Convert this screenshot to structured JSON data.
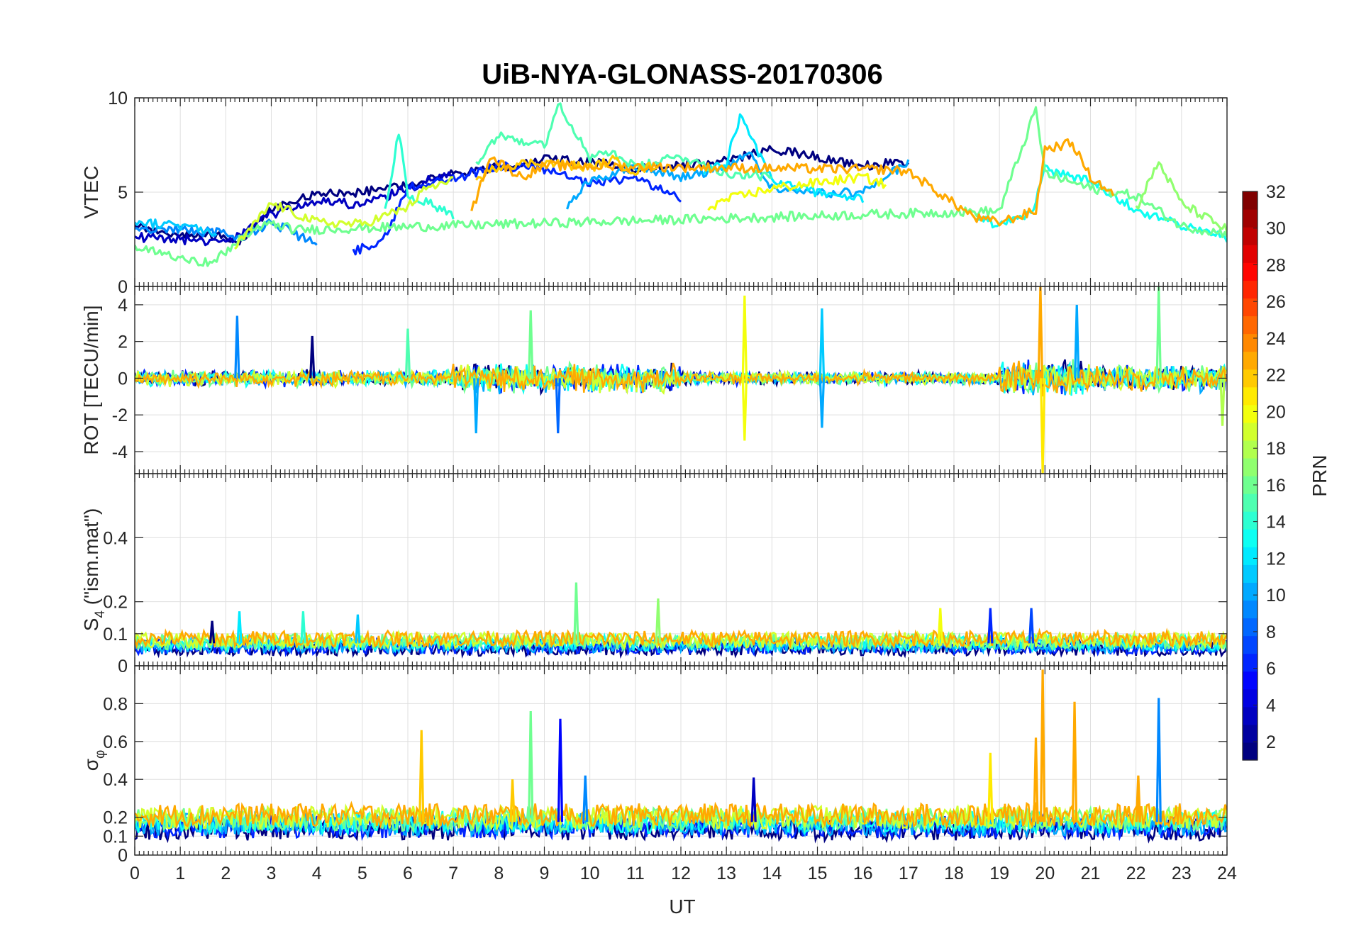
{
  "chart_data": {
    "type": "line",
    "title": "UiB-NYA-GLONASS-20170306",
    "xlabel": "UT",
    "xlim": [
      0,
      24
    ],
    "x_ticks": [
      "0",
      "1",
      "2",
      "3",
      "4",
      "5",
      "6",
      "7",
      "8",
      "9",
      "10",
      "11",
      "12",
      "13",
      "14",
      "15",
      "16",
      "17",
      "18",
      "19",
      "20",
      "21",
      "22",
      "23",
      "24"
    ],
    "grid": true,
    "colorbar": {
      "label": "PRN",
      "range": [
        1,
        32
      ],
      "ticks": [
        "2",
        "4",
        "6",
        "8",
        "10",
        "12",
        "14",
        "16",
        "18",
        "20",
        "22",
        "24",
        "26",
        "28",
        "30",
        "32"
      ],
      "placement": "right",
      "colormap": "jet"
    },
    "panels": [
      {
        "id": "vtec",
        "ylabel": "VTEC",
        "ylim": [
          0,
          10
        ],
        "y_ticks": [
          {
            "value": 0,
            "label": "0"
          },
          {
            "value": 5,
            "label": "5"
          },
          {
            "value": 10,
            "label": "10"
          }
        ],
        "series": [
          {
            "prn": 1,
            "x": [
              0,
              1,
              2,
              2.3,
              3,
              4,
              5,
              6,
              7,
              8,
              9,
              10,
              11,
              12,
              13,
              14,
              15,
              16,
              17
            ],
            "y": [
              3.2,
              2.8,
              2.6,
              2.4,
              4.2,
              4.9,
              5.0,
              5.4,
              6.0,
              6.3,
              6.8,
              6.6,
              6.2,
              6.4,
              6.7,
              7.3,
              6.9,
              6.4,
              6.6
            ]
          },
          {
            "prn": 3,
            "x": [
              0,
              1,
              2,
              3,
              4,
              5,
              6,
              7
            ],
            "y": [
              2.6,
              2.5,
              2.3,
              3.8,
              4.6,
              4.3,
              5.2,
              6.1
            ]
          },
          {
            "prn": 6,
            "x": [
              4.8,
              5.5,
              6,
              7,
              8,
              9,
              10,
              11,
              12
            ],
            "y": [
              1.8,
              2.6,
              5.3,
              5.7,
              6.4,
              6.2,
              5.4,
              5.8,
              4.6
            ]
          },
          {
            "prn": 9,
            "x": [
              0,
              1,
              2,
              2.3,
              3,
              4
            ],
            "y": [
              3.1,
              3.0,
              2.8,
              2.6,
              3.4,
              2.2
            ]
          },
          {
            "prn": 10,
            "x": [
              9.5,
              10,
              11,
              12,
              13,
              13.5,
              14,
              15,
              16,
              17
            ],
            "y": [
              4.2,
              5.6,
              6.4,
              5.8,
              6.3,
              7.1,
              5.2,
              4.9,
              5.0,
              6.6
            ]
          },
          {
            "prn": 11,
            "x": [
              0,
              1,
              1.8
            ],
            "y": [
              3.4,
              3.2,
              2.9
            ]
          },
          {
            "prn": 12,
            "x": [
              12.5,
              13,
              13.3,
              14,
              15,
              16
            ],
            "y": [
              6.0,
              6.6,
              9.0,
              5.6,
              5.0,
              4.6
            ]
          },
          {
            "prn": 13,
            "x": [
              18.5,
              19,
              19.7,
              20,
              21,
              22,
              23,
              24
            ],
            "y": [
              3.7,
              3.2,
              3.9,
              6.2,
              5.6,
              4.1,
              3.2,
              2.6
            ]
          },
          {
            "prn": 14,
            "x": [
              5.5,
              5.8,
              6,
              6.5,
              7
            ],
            "y": [
              4.0,
              8.2,
              4.8,
              4.4,
              3.8
            ]
          },
          {
            "prn": 15,
            "x": [
              7.5,
              8,
              9,
              9.3,
              10,
              10.5,
              11,
              12,
              13,
              14
            ],
            "y": [
              6.6,
              8.1,
              7.4,
              9.8,
              6.8,
              7.1,
              6.3,
              6.9,
              6.0,
              5.8
            ]
          },
          {
            "prn": 16,
            "x": [
              0,
              1,
              1.7,
              2.3,
              3,
              3.5,
              19,
              19.8,
              20,
              21,
              22,
              23,
              24
            ],
            "y": [
              2.0,
              1.6,
              1.2,
              2.5,
              3.4,
              3.0,
              4.0,
              9.4,
              6.0,
              5.2,
              4.8,
              3.2,
              2.8
            ]
          },
          {
            "prn": 17,
            "x": [
              22,
              22.5,
              23,
              24
            ],
            "y": [
              4.1,
              6.6,
              4.4,
              3.0
            ]
          },
          {
            "prn": 19,
            "x": [
              2.2,
              3,
              4,
              5,
              6,
              6.4,
              7
            ],
            "y": [
              2.0,
              4.4,
              3.4,
              3.3,
              4.2,
              5.2,
              5.6
            ]
          },
          {
            "prn": 20,
            "x": [
              12.6,
              13,
              14,
              15,
              16,
              16.5
            ],
            "y": [
              4.2,
              4.6,
              5.2,
              5.5,
              5.8,
              5.4
            ]
          },
          {
            "prn": 22,
            "x": [
              7.5,
              8,
              9,
              10,
              10.5,
              11,
              11.5
            ],
            "y": [
              5.6,
              6.4,
              6.6,
              6.3,
              6.7,
              6.1,
              6.5
            ]
          },
          {
            "prn": 23,
            "x": [
              7.4,
              7.8,
              8.5,
              9,
              16.5,
              17,
              18,
              18.5,
              19,
              19.8,
              20,
              20.6,
              21,
              21.5
            ],
            "y": [
              3.9,
              6.9,
              5.8,
              6.4,
              6.2,
              6.1,
              4.4,
              3.6,
              3.4,
              4.0,
              7.3,
              7.6,
              5.8,
              4.9
            ]
          }
        ]
      },
      {
        "id": "rot",
        "ylabel": "ROT [TECU/min]",
        "ylim": [
          -5.2,
          5
        ],
        "y_ticks": [
          {
            "value": -4,
            "label": "-4"
          },
          {
            "value": -2,
            "label": "-2"
          },
          {
            "value": 0,
            "label": "0"
          },
          {
            "value": 2,
            "label": "2"
          },
          {
            "value": 4,
            "label": "4"
          }
        ],
        "spikes": [
          {
            "prn": 9,
            "x": 2.25,
            "y": 3.4
          },
          {
            "prn": 1,
            "x": 3.9,
            "y": 2.3
          },
          {
            "prn": 15,
            "x": 6.0,
            "y": 2.7
          },
          {
            "prn": 10,
            "x": 7.5,
            "y": -3.0
          },
          {
            "prn": 16,
            "x": 8.7,
            "y": 3.7
          },
          {
            "prn": 8,
            "x": 9.3,
            "y": -3.0
          },
          {
            "prn": 20,
            "x": 13.4,
            "y": 4.5
          },
          {
            "prn": 20,
            "x": 13.4,
            "y": -3.4
          },
          {
            "prn": 11,
            "x": 15.1,
            "y": 3.8
          },
          {
            "prn": 10,
            "x": 15.1,
            "y": -2.7
          },
          {
            "prn": 23,
            "x": 19.9,
            "y": 5.0
          },
          {
            "prn": 21,
            "x": 19.95,
            "y": -5.2
          },
          {
            "prn": 10,
            "x": 20.7,
            "y": 4.0
          },
          {
            "prn": 16,
            "x": 22.5,
            "y": 5.0
          },
          {
            "prn": 18,
            "x": 23.9,
            "y": -2.6
          }
        ],
        "noise_bands": [
          {
            "x_range": [
              0,
              7
            ],
            "amplitude": 0.5
          },
          {
            "x_range": [
              7,
              12
            ],
            "amplitude": 0.9
          },
          {
            "x_range": [
              12,
              19
            ],
            "amplitude": 0.4
          },
          {
            "x_range": [
              19,
              21
            ],
            "amplitude": 1.1
          },
          {
            "x_range": [
              21,
              24
            ],
            "amplitude": 0.8
          }
        ]
      },
      {
        "id": "s4",
        "ylabel": "S4 (\"ism.mat\")",
        "ylabel_main": "S",
        "ylabel_sub": "4",
        "ylabel_suffix": " (\"ism.mat\")",
        "ylim": [
          0,
          0.6
        ],
        "y_ticks": [
          {
            "value": 0,
            "label": "0"
          },
          {
            "value": 0.1,
            "label": "0.1"
          },
          {
            "value": 0.2,
            "label": "0.2"
          },
          {
            "value": 0.4,
            "label": "0.4"
          }
        ],
        "baseline_range": [
          0.04,
          0.1
        ],
        "spikes": [
          {
            "prn": 1,
            "x": 1.7,
            "y": 0.14
          },
          {
            "prn": 12,
            "x": 2.3,
            "y": 0.17
          },
          {
            "prn": 14,
            "x": 3.7,
            "y": 0.17
          },
          {
            "prn": 11,
            "x": 4.9,
            "y": 0.16
          },
          {
            "prn": 16,
            "x": 9.7,
            "y": 0.26
          },
          {
            "prn": 17,
            "x": 11.5,
            "y": 0.21
          },
          {
            "prn": 20,
            "x": 17.7,
            "y": 0.18
          },
          {
            "prn": 6,
            "x": 18.8,
            "y": 0.18
          },
          {
            "prn": 7,
            "x": 19.7,
            "y": 0.18
          }
        ]
      },
      {
        "id": "sigma-phi",
        "ylabel": "σφ",
        "ylabel_main": "σ",
        "ylabel_sub": "φ",
        "ylim": [
          0,
          1
        ],
        "y_ticks": [
          {
            "value": 0,
            "label": "0"
          },
          {
            "value": 0.1,
            "label": "0.1"
          },
          {
            "value": 0.2,
            "label": "0.2"
          },
          {
            "value": 0.4,
            "label": "0.4"
          },
          {
            "value": 0.6,
            "label": "0.6"
          },
          {
            "value": 0.8,
            "label": "0.8"
          }
        ],
        "baseline_range": [
          0.1,
          0.25
        ],
        "spikes": [
          {
            "prn": 22,
            "x": 6.3,
            "y": 0.66
          },
          {
            "prn": 16,
            "x": 8.7,
            "y": 0.76
          },
          {
            "prn": 5,
            "x": 9.35,
            "y": 0.72
          },
          {
            "prn": 22,
            "x": 8.3,
            "y": 0.4
          },
          {
            "prn": 9,
            "x": 9.9,
            "y": 0.42
          },
          {
            "prn": 3,
            "x": 13.6,
            "y": 0.41
          },
          {
            "prn": 21,
            "x": 18.8,
            "y": 0.54
          },
          {
            "prn": 23,
            "x": 19.8,
            "y": 0.62
          },
          {
            "prn": 23,
            "x": 19.95,
            "y": 0.98
          },
          {
            "prn": 23,
            "x": 20.65,
            "y": 0.81
          },
          {
            "prn": 23,
            "x": 22.05,
            "y": 0.42
          },
          {
            "prn": 9,
            "x": 22.5,
            "y": 0.83
          }
        ]
      }
    ]
  }
}
